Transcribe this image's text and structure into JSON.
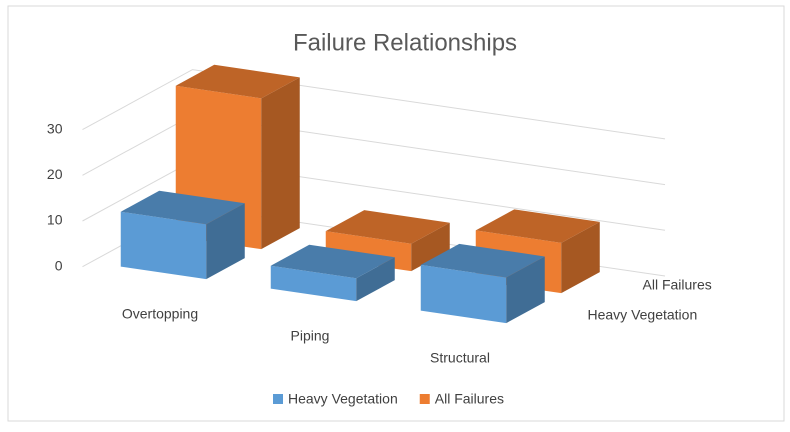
{
  "chart_data": {
    "type": "bar3d",
    "title": "Failure Relationships",
    "categories": [
      "Overtopping",
      "Piping",
      "Structural"
    ],
    "series": [
      {
        "name": "Heavy Vegetation",
        "color": "#5b9bd5",
        "values": [
          12,
          5,
          10
        ]
      },
      {
        "name": "All Failures",
        "color": "#ed7d31",
        "values": [
          33,
          6,
          11
        ]
      }
    ],
    "ylim": [
      0,
      35
    ],
    "yticks": [
      0,
      10,
      20,
      30
    ],
    "grid": true,
    "legend": "bottom"
  }
}
